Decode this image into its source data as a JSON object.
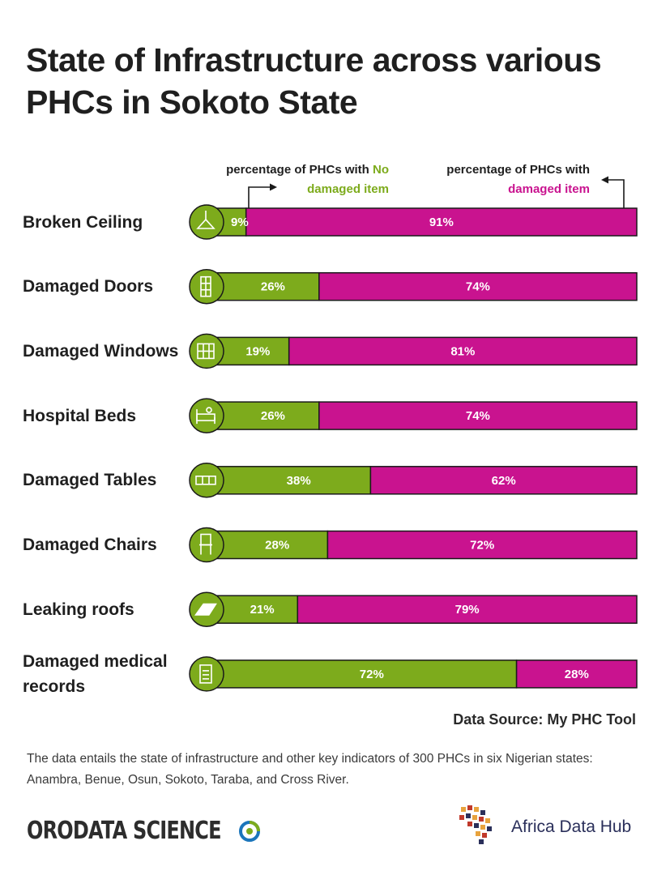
{
  "title": {
    "line1": "State of Infrastructure across various",
    "line2": "PHCs in Sokoto State"
  },
  "legend": {
    "left_line1": "percentage of PHCs with ",
    "left_highlight1": "No",
    "left_line2": "damaged item",
    "right_line1": "percentage of PHCs with",
    "right_line2": "damaged item"
  },
  "colors": {
    "no_damage": "#7dab1c",
    "damaged": "#c9138f",
    "outline": "#1a1a1a"
  },
  "chart_data": {
    "type": "bar",
    "stacked": true,
    "orientation": "horizontal",
    "unit": "%",
    "categories": [
      "Broken Ceiling",
      "Damaged Doors",
      "Damaged Windows",
      "Hospital Beds",
      "Damaged Tables",
      "Damaged Chairs",
      "Leaking roofs",
      "Damaged medical records"
    ],
    "icons": [
      "ceiling-lamp-icon",
      "door-icon",
      "window-icon",
      "bed-icon",
      "table-icon",
      "chair-icon",
      "roof-icon",
      "document-icon"
    ],
    "series": [
      {
        "name": "percentage of PHCs with No damaged item",
        "color": "#7dab1c",
        "values": [
          9,
          26,
          19,
          26,
          38,
          28,
          21,
          72
        ]
      },
      {
        "name": "percentage of PHCs with damaged item",
        "color": "#c9138f",
        "values": [
          91,
          74,
          81,
          74,
          62,
          72,
          79,
          28
        ]
      }
    ],
    "xlim": [
      0,
      100
    ]
  },
  "footer": {
    "source": "Data Source: My PHC Tool",
    "note": "The data entails the state of infrastructure and other key indicators of 300 PHCs in six Nigerian states: Anambra, Benue, Osun, Sokoto, Taraba, and Cross River."
  },
  "logos": {
    "orodata": "ORODATA SCIENCE",
    "adh": "Africa Data Hub"
  }
}
